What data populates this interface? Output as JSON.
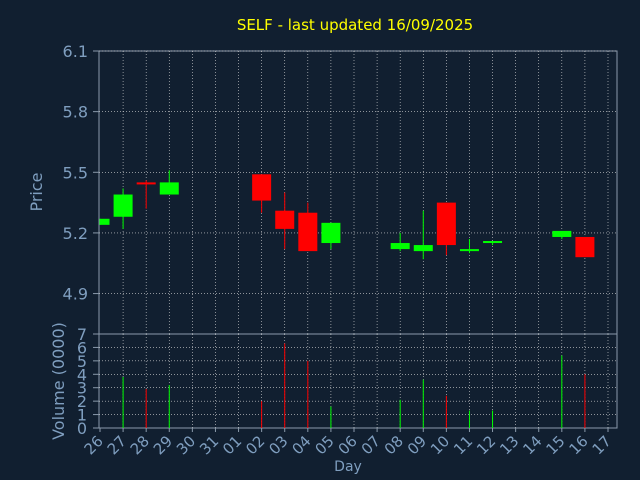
{
  "chart_data": {
    "title": "SELF - last updated 16/09/2025",
    "price_chart": {
      "type": "candlestick",
      "ylabel": "Price",
      "ylim": [
        4.7,
        6.1
      ],
      "yticks": [
        "6.1",
        "5.8",
        "5.5",
        "5.2",
        "4.9"
      ],
      "ytick_values": [
        6.1,
        5.8,
        5.5,
        5.2,
        4.9
      ],
      "grid": true,
      "up_color": "#00ff00",
      "down_color": "#ff0000",
      "candles": [
        {
          "day": "26",
          "open": 5.24,
          "high": 5.27,
          "low": 5.24,
          "close": 5.27
        },
        {
          "day": "27",
          "open": 5.28,
          "high": 5.42,
          "low": 5.22,
          "close": 5.39
        },
        {
          "day": "28",
          "open": 5.45,
          "high": 5.46,
          "low": 5.32,
          "close": 5.44
        },
        {
          "day": "29",
          "open": 5.39,
          "high": 5.51,
          "low": 5.39,
          "close": 5.45
        },
        {
          "day": "02",
          "open": 5.49,
          "high": 5.49,
          "low": 5.3,
          "close": 5.36
        },
        {
          "day": "03",
          "open": 5.31,
          "high": 5.4,
          "low": 5.12,
          "close": 5.22
        },
        {
          "day": "04",
          "open": 5.3,
          "high": 5.35,
          "low": 5.12,
          "close": 5.11
        },
        {
          "day": "05",
          "open": 5.15,
          "high": 5.25,
          "low": 5.12,
          "close": 5.25
        },
        {
          "day": "08",
          "open": 5.12,
          "high": 5.2,
          "low": 5.11,
          "close": 5.15
        },
        {
          "day": "09",
          "open": 5.11,
          "high": 5.31,
          "low": 5.07,
          "close": 5.14
        },
        {
          "day": "10",
          "open": 5.35,
          "high": 5.35,
          "low": 5.09,
          "close": 5.14
        },
        {
          "day": "11",
          "open": 5.11,
          "high": 5.17,
          "low": 5.1,
          "close": 5.12
        },
        {
          "day": "12",
          "open": 5.15,
          "high": 5.16,
          "low": 5.14,
          "close": 5.16
        },
        {
          "day": "15",
          "open": 5.18,
          "high": 5.2,
          "low": 5.17,
          "close": 5.21
        },
        {
          "day": "16",
          "open": 5.18,
          "high": 5.18,
          "low": 5.08,
          "close": 5.08
        }
      ]
    },
    "volume_chart": {
      "type": "bar",
      "ylabel": "Volume (0000)",
      "ylim": [
        0,
        7
      ],
      "yticks": [
        "0",
        "1",
        "2",
        "3",
        "4",
        "5",
        "6",
        "7"
      ],
      "grid": true,
      "bars": [
        {
          "day": "27",
          "value": 3.8,
          "color": "#00ff00"
        },
        {
          "day": "28",
          "value": 2.9,
          "color": "#ff0000"
        },
        {
          "day": "29",
          "value": 3.2,
          "color": "#00ff00"
        },
        {
          "day": "02",
          "value": 2.0,
          "color": "#ff0000"
        },
        {
          "day": "03",
          "value": 6.3,
          "color": "#ff0000"
        },
        {
          "day": "04",
          "value": 5.0,
          "color": "#ff0000"
        },
        {
          "day": "05",
          "value": 1.6,
          "color": "#00ff00"
        },
        {
          "day": "08",
          "value": 2.1,
          "color": "#00ff00"
        },
        {
          "day": "09",
          "value": 3.6,
          "color": "#00ff00"
        },
        {
          "day": "10",
          "value": 2.4,
          "color": "#ff0000"
        },
        {
          "day": "11",
          "value": 1.3,
          "color": "#00ff00"
        },
        {
          "day": "12",
          "value": 1.3,
          "color": "#00ff00"
        },
        {
          "day": "15",
          "value": 5.4,
          "color": "#00ff00"
        },
        {
          "day": "16",
          "value": 4.0,
          "color": "#ff0000"
        }
      ]
    },
    "x_axis": {
      "xlabel": "Day",
      "days": [
        "26",
        "27",
        "28",
        "29",
        "30",
        "31",
        "01",
        "02",
        "03",
        "04",
        "05",
        "06",
        "07",
        "08",
        "09",
        "10",
        "11",
        "12",
        "13",
        "14",
        "15",
        "16",
        "17"
      ]
    }
  },
  "colors": {
    "background": "#111f30",
    "axis": "#8a9aab",
    "grid": "#d9d9d9",
    "text": "#7f9ebf",
    "title": "#ffff00"
  }
}
